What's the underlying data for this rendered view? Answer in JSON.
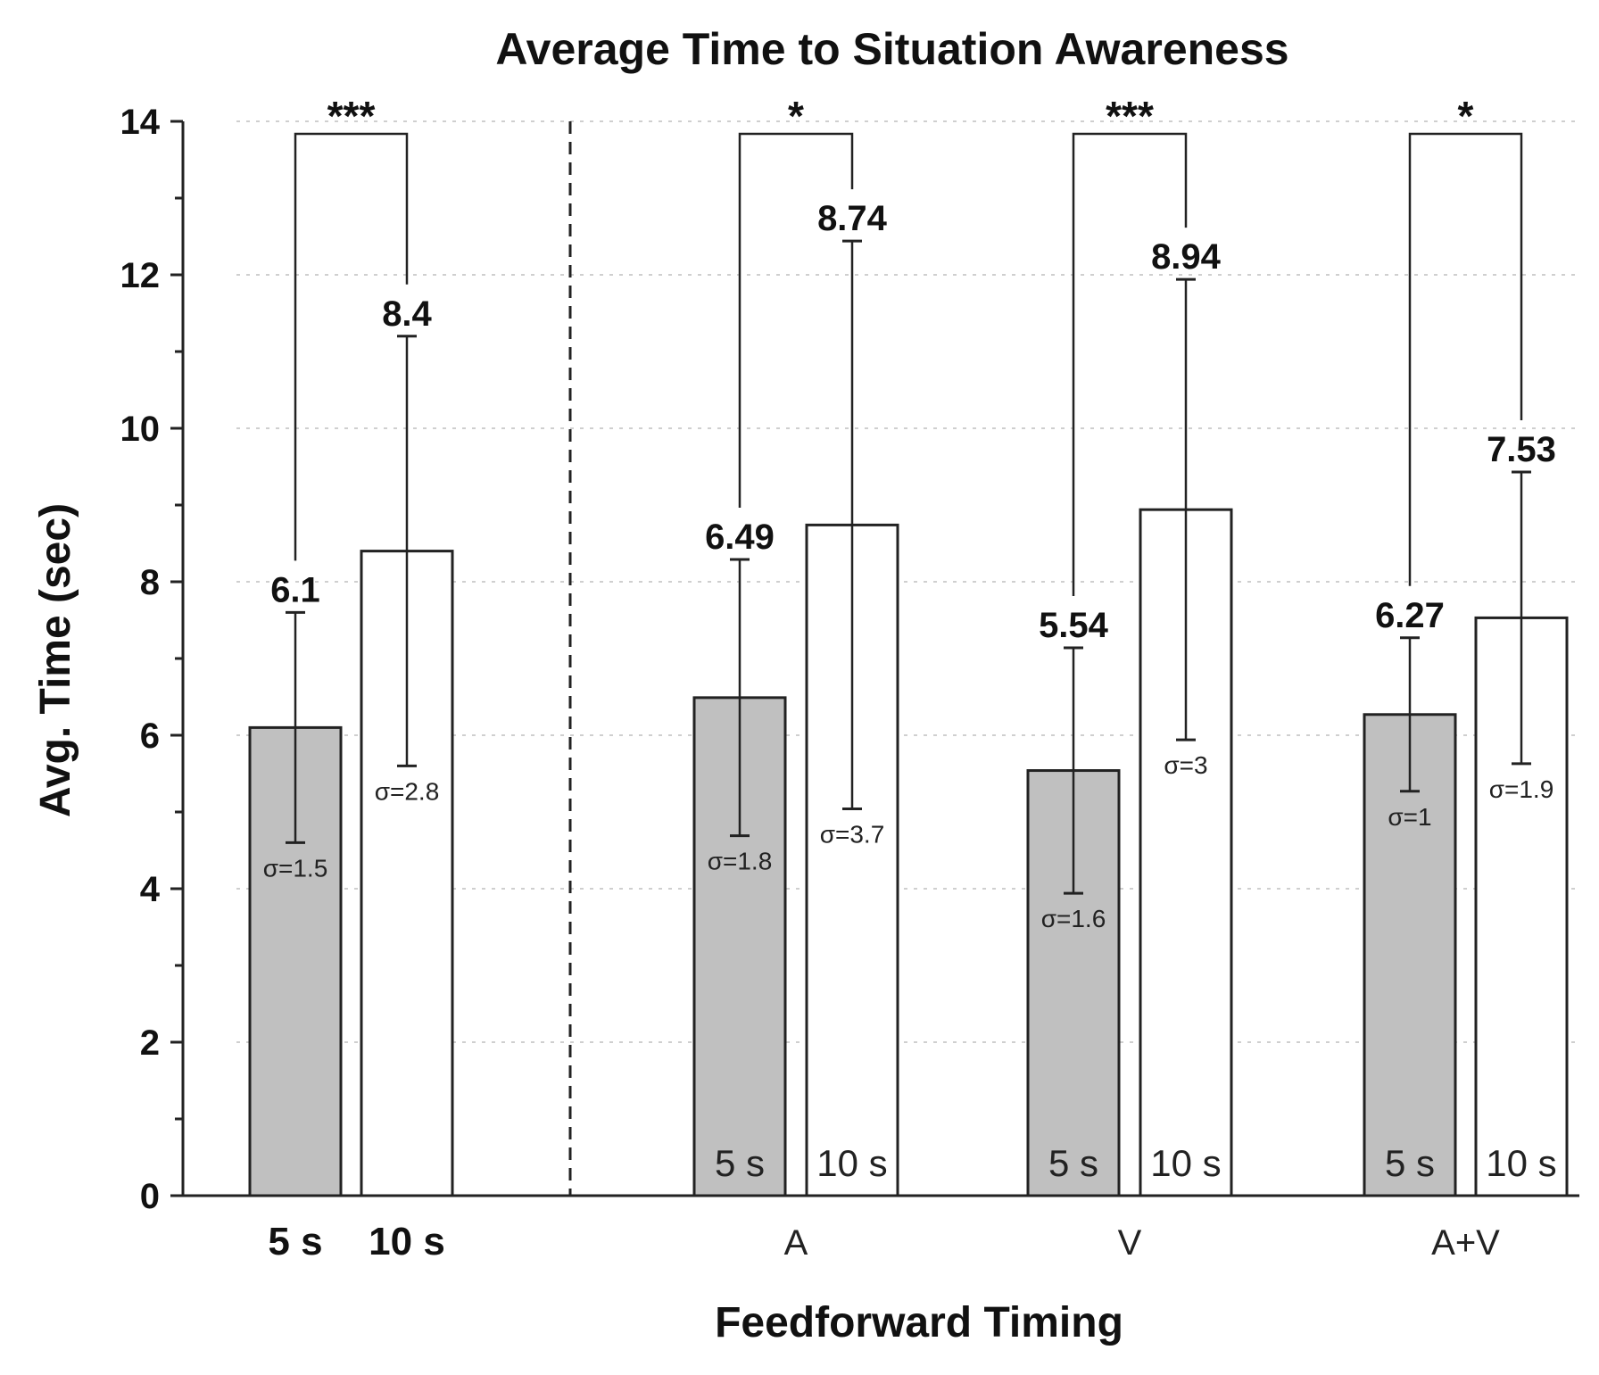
{
  "chart_data": {
    "type": "bar",
    "title": "Average Time to Situation Awareness",
    "xlabel": "Feedforward Timing",
    "ylabel": "Avg. Time (sec)",
    "ylim": [
      0,
      14
    ],
    "yticks": [
      0,
      2,
      4,
      6,
      8,
      10,
      12,
      14
    ],
    "grid": "horizontal dotted",
    "colors": {
      "five_s": "#c0c0c0",
      "ten_s": "#ffffff",
      "edge": "#222222"
    },
    "groups": [
      {
        "label": "",
        "bars": [
          {
            "series": "5 s",
            "value": 6.1,
            "value_label": "6.1",
            "sd": 1.5,
            "sigma_label": "σ=1.5",
            "axis_label": "5 s"
          },
          {
            "series": "10 s",
            "value": 8.4,
            "value_label": "8.4",
            "sd": 2.8,
            "sigma_label": "σ=2.8",
            "axis_label": "10 s"
          }
        ],
        "significance": "***"
      },
      {
        "label": "A",
        "bars": [
          {
            "series": "5 s",
            "value": 6.49,
            "value_label": "6.49",
            "sd": 1.8,
            "sigma_label": "σ=1.8",
            "inbar_label": "5 s"
          },
          {
            "series": "10 s",
            "value": 8.74,
            "value_label": "8.74",
            "sd": 3.7,
            "sigma_label": "σ=3.7",
            "inbar_label": "10 s"
          }
        ],
        "significance": "*"
      },
      {
        "label": "V",
        "bars": [
          {
            "series": "5 s",
            "value": 5.54,
            "value_label": "5.54",
            "sd": 1.6,
            "sigma_label": "σ=1.6",
            "inbar_label": "5 s"
          },
          {
            "series": "10 s",
            "value": 8.94,
            "value_label": "8.94",
            "sd": 3,
            "sigma_label": "σ=3",
            "inbar_label": "10 s"
          }
        ],
        "significance": "***"
      },
      {
        "label": "A+V",
        "bars": [
          {
            "series": "5 s",
            "value": 6.27,
            "value_label": "6.27",
            "sd": 1,
            "sigma_label": "σ=1",
            "inbar_label": "5 s"
          },
          {
            "series": "10 s",
            "value": 7.53,
            "value_label": "7.53",
            "sd": 1.9,
            "sigma_label": "σ=1.9",
            "inbar_label": "10 s"
          }
        ],
        "significance": "*"
      }
    ]
  }
}
